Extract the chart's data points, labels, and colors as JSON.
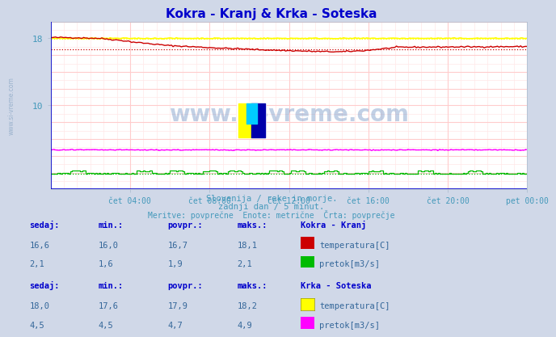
{
  "title": "Kokra - Kranj & Krka - Soteska",
  "title_color": "#0000cc",
  "bg_color": "#d0d8e8",
  "plot_bg_color": "#ffffff",
  "grid_major_color": "#ffcccc",
  "grid_minor_color": "#ffe8e8",
  "x_tick_labels": [
    "čet 04:00",
    "čet 08:00",
    "čet 12:00",
    "čet 16:00",
    "čet 20:00",
    "pet 00:00"
  ],
  "x_tick_positions": [
    48,
    96,
    144,
    192,
    240,
    288
  ],
  "y_min": 0,
  "y_max": 20,
  "subtitle1": "Slovenija / reke in morje.",
  "subtitle2": "zadnji dan / 5 minut.",
  "subtitle3": "Meritve: povprečne  Enote: metrične  Črta: povprečje",
  "subtitle_color": "#4499bb",
  "watermark": "www.si-vreme.com",
  "watermark_color": "#3366aa",
  "kokra_temp_color": "#cc0000",
  "kokra_flow_color": "#00bb00",
  "krka_temp_color": "#ffff00",
  "krka_flow_color": "#ff00ff",
  "kokra_temp_avg": 16.7,
  "kokra_flow_avg": 1.9,
  "krka_temp_avg": 17.9,
  "krka_flow_avg": 4.7,
  "table_header_color": "#0000cc",
  "table_value_color": "#336699",
  "kokra_sedaj": 16.6,
  "kokra_min": 16.0,
  "kokra_povpr": 16.7,
  "kokra_maks": 18.1,
  "kokra_flow_sedaj": 2.1,
  "kokra_flow_min": 1.6,
  "kokra_flow_povpr": 1.9,
  "kokra_flow_maks": 2.1,
  "krka_sedaj": 18.0,
  "krka_min": 17.6,
  "krka_povpr": 17.9,
  "krka_maks": 18.2,
  "krka_flow_sedaj": 4.5,
  "krka_flow_min": 4.5,
  "krka_flow_povpr": 4.7,
  "krka_flow_maks": 4.9
}
